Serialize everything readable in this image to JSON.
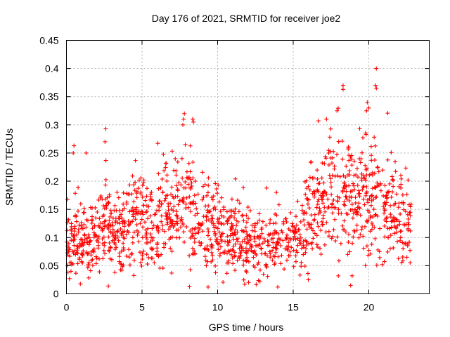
{
  "chart_data": {
    "type": "scatter",
    "title": "Day 176 of 2021, SRMTID for receiver joe2",
    "xlabel": "GPS time / hours",
    "ylabel": "SRMTID / TECUs",
    "xlim": [
      0,
      24
    ],
    "ylim": [
      0,
      0.45
    ],
    "xticks": [
      0,
      5,
      10,
      15,
      20
    ],
    "yticks": [
      0,
      0.05,
      0.1,
      0.15,
      0.2,
      0.25,
      0.3,
      0.35,
      0.4,
      0.45
    ],
    "xtick_labels": [
      "0",
      "5",
      "10",
      "15",
      "20"
    ],
    "ytick_labels": [
      "0",
      "0.05",
      "0.1",
      "0.15",
      "0.2",
      "0.25",
      "0.3",
      "0.35",
      "0.4",
      "0.45"
    ],
    "grid": true,
    "marker": "+",
    "color": "#ff0000",
    "x_range_of_points": [
      0.0,
      22.8
    ],
    "trend": [
      [
        0.0,
        0.09
      ],
      [
        0.5,
        0.1
      ],
      [
        1.0,
        0.095
      ],
      [
        1.5,
        0.1
      ],
      [
        2.0,
        0.105
      ],
      [
        2.5,
        0.12
      ],
      [
        3.0,
        0.115
      ],
      [
        3.5,
        0.11
      ],
      [
        4.0,
        0.12
      ],
      [
        4.5,
        0.13
      ],
      [
        5.0,
        0.125
      ],
      [
        5.5,
        0.13
      ],
      [
        6.0,
        0.14
      ],
      [
        6.5,
        0.14
      ],
      [
        7.0,
        0.13
      ],
      [
        7.5,
        0.15
      ],
      [
        8.0,
        0.155
      ],
      [
        8.5,
        0.14
      ],
      [
        9.0,
        0.13
      ],
      [
        9.5,
        0.12
      ],
      [
        10.0,
        0.11
      ],
      [
        10.5,
        0.105
      ],
      [
        11.0,
        0.1
      ],
      [
        11.5,
        0.095
      ],
      [
        12.0,
        0.09
      ],
      [
        12.5,
        0.085
      ],
      [
        13.0,
        0.08
      ],
      [
        13.5,
        0.085
      ],
      [
        14.0,
        0.095
      ],
      [
        14.5,
        0.1
      ],
      [
        15.0,
        0.1
      ],
      [
        15.5,
        0.11
      ],
      [
        16.0,
        0.13
      ],
      [
        16.5,
        0.15
      ],
      [
        17.0,
        0.16
      ],
      [
        17.5,
        0.17
      ],
      [
        18.0,
        0.18
      ],
      [
        18.5,
        0.17
      ],
      [
        19.0,
        0.16
      ],
      [
        19.5,
        0.165
      ],
      [
        20.0,
        0.17
      ],
      [
        20.5,
        0.16
      ],
      [
        21.0,
        0.14
      ],
      [
        21.5,
        0.15
      ],
      [
        22.0,
        0.13
      ],
      [
        22.5,
        0.12
      ],
      [
        22.8,
        0.11
      ]
    ],
    "notable_points": [
      {
        "x": 20.5,
        "y": 0.4
      },
      {
        "x": 18.3,
        "y": 0.37
      },
      {
        "x": 18.3,
        "y": 0.363
      },
      {
        "x": 20.45,
        "y": 0.37
      },
      {
        "x": 20.5,
        "y": 0.365
      },
      {
        "x": 19.9,
        "y": 0.34
      },
      {
        "x": 20.0,
        "y": 0.33
      },
      {
        "x": 19.85,
        "y": 0.325
      },
      {
        "x": 7.8,
        "y": 0.32
      },
      {
        "x": 7.75,
        "y": 0.31
      },
      {
        "x": 7.7,
        "y": 0.3
      },
      {
        "x": 8.35,
        "y": 0.31
      },
      {
        "x": 8.4,
        "y": 0.305
      },
      {
        "x": 17.9,
        "y": 0.325
      },
      {
        "x": 17.2,
        "y": 0.31
      },
      {
        "x": 2.6,
        "y": 0.293
      },
      {
        "x": 2.55,
        "y": 0.27
      },
      {
        "x": 0.5,
        "y": 0.263
      },
      {
        "x": 0.45,
        "y": 0.25
      },
      {
        "x": 1.3,
        "y": 0.25
      },
      {
        "x": 7.2,
        "y": 0.24
      },
      {
        "x": 0.3,
        "y": 0.04
      },
      {
        "x": 0.2,
        "y": 0.027
      },
      {
        "x": 12.8,
        "y": 0.022
      },
      {
        "x": 16.0,
        "y": 0.025
      },
      {
        "x": 18.8,
        "y": 0.015
      },
      {
        "x": 18.9,
        "y": 0.032
      },
      {
        "x": 3.2,
        "y": 0.038
      }
    ]
  }
}
